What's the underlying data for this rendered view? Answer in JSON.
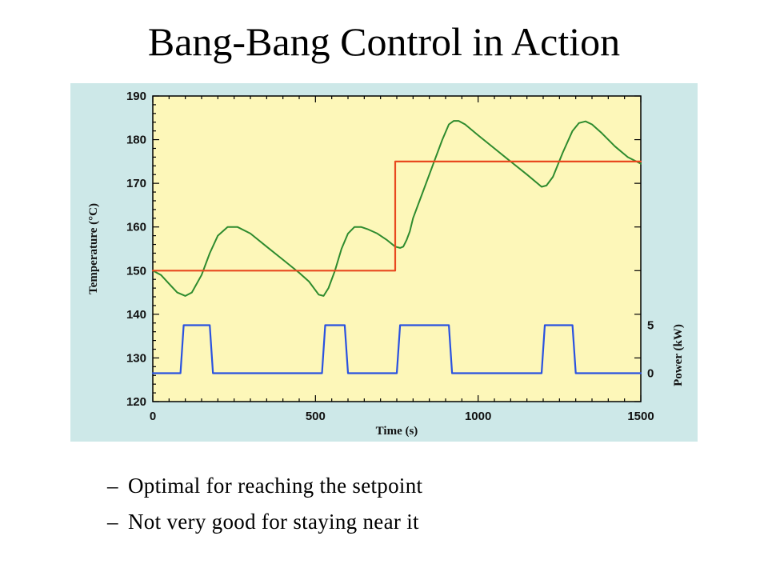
{
  "slide": {
    "title": "Bang-Bang Control in Action",
    "bullets": [
      "Optimal for reaching the setpoint",
      "Not very good for staying near it"
    ],
    "bullet_marker": "–"
  },
  "colors": {
    "panel_background": "#cde8e8",
    "plot_background": "#fdf7b9",
    "temperature": "#2e8b2e",
    "setpoint": "#e8491f",
    "power": "#2a52e0"
  },
  "chart_data": {
    "type": "line",
    "title": "",
    "xlabel": "Time (s)",
    "ylabel": "Temperature (°C)",
    "y2label": "Power (kW)",
    "xlim": [
      0,
      1500
    ],
    "ylim": [
      120,
      190
    ],
    "x_ticks": [
      0,
      500,
      1000,
      1500
    ],
    "y_ticks": [
      120,
      130,
      140,
      150,
      160,
      170,
      180,
      190
    ],
    "y2_ticks": [
      0,
      5
    ],
    "y2_map": {
      "0": 126.5,
      "5": 137.5
    },
    "grid": false,
    "series": [
      {
        "id": "temperature",
        "x": [
          0,
          25,
          50,
          75,
          100,
          120,
          150,
          175,
          200,
          230,
          260,
          300,
          350,
          400,
          450,
          480,
          510,
          525,
          540,
          560,
          580,
          600,
          620,
          640,
          660,
          690,
          720,
          745,
          760,
          770,
          780,
          790,
          800,
          830,
          860,
          890,
          910,
          925,
          940,
          960,
          1000,
          1050,
          1100,
          1150,
          1195,
          1210,
          1230,
          1260,
          1290,
          1310,
          1330,
          1350,
          1380,
          1420,
          1460,
          1500
        ],
        "y": [
          150,
          149,
          147,
          145,
          144.2,
          145,
          149,
          154,
          158,
          160,
          160,
          158.5,
          155.5,
          152.5,
          149.5,
          147.5,
          144.5,
          144.2,
          146,
          150,
          155,
          158.5,
          160,
          160,
          159.5,
          158.5,
          157,
          155.5,
          155.2,
          155.5,
          157,
          159,
          162,
          168,
          174,
          180,
          183.5,
          184.3,
          184.3,
          183.5,
          181,
          178,
          175,
          172,
          169.2,
          169.5,
          171.5,
          177,
          182,
          183.8,
          184.2,
          183.5,
          181.5,
          178.5,
          176,
          174.5
        ]
      },
      {
        "id": "setpoint",
        "x": [
          0,
          745,
          745,
          1500
        ],
        "y": [
          150,
          150,
          175,
          175
        ]
      },
      {
        "id": "power",
        "x": [
          0,
          85,
          95,
          175,
          185,
          520,
          530,
          590,
          600,
          750,
          760,
          910,
          920,
          1195,
          1205,
          1290,
          1300,
          1500
        ],
        "y": [
          0,
          0,
          5,
          5,
          0,
          0,
          5,
          5,
          0,
          0,
          5,
          5,
          0,
          0,
          5,
          5,
          0,
          0
        ]
      }
    ]
  }
}
